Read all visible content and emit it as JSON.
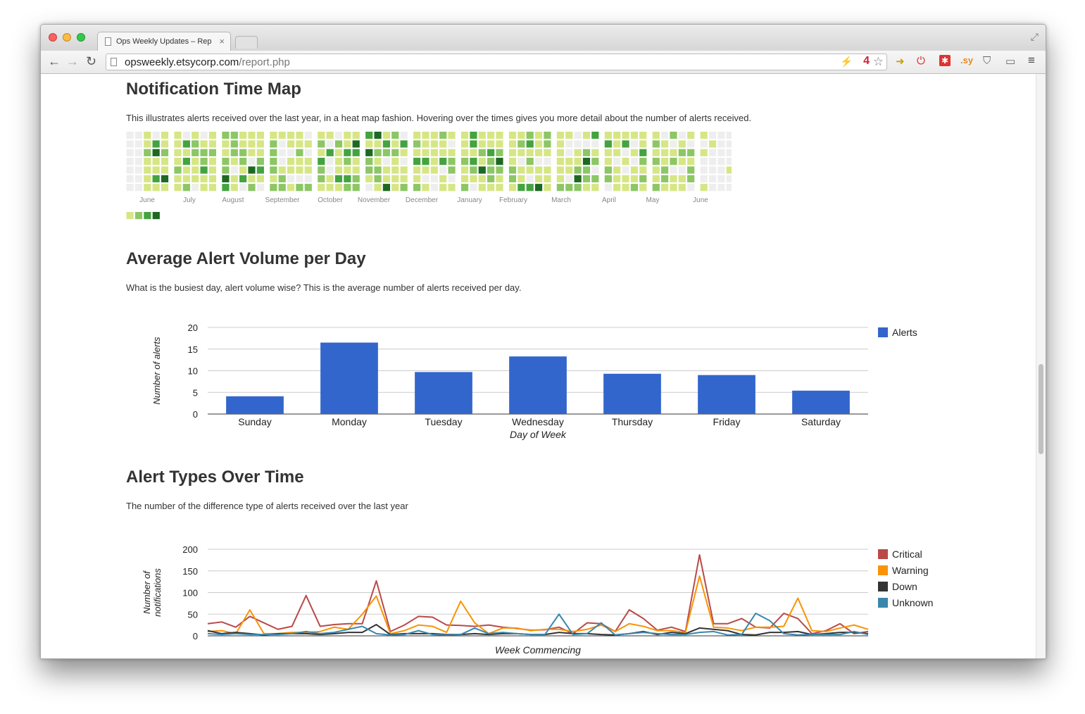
{
  "browser": {
    "tab_title": "Ops Weekly Updates – Rep",
    "tab_close": "×",
    "url_host": "opsweekly.etsycorp.com",
    "url_path": "/report.php",
    "ext_badge": "4",
    "ext_sy": ".sy"
  },
  "sections": {
    "heatmap": {
      "title": "Notification Time Map",
      "description": "This illustrates alerts received over the last year, in a heat map fashion. Hovering over the times gives you more detail about the number of alerts received.",
      "months": [
        "June",
        "July",
        "August",
        "September",
        "October",
        "November",
        "December",
        "January",
        "February",
        "March",
        "April",
        "May",
        "June"
      ],
      "colors": [
        "#eeeeee",
        "#d6e685",
        "#8cc665",
        "#44a340",
        "#1e6823"
      ]
    },
    "volume": {
      "title": "Average Alert Volume per Day",
      "description": "What is the busiest day, alert volume wise? This is the average number of alerts received per day."
    },
    "types": {
      "title": "Alert Types Over Time",
      "description": "The number of the difference type of alerts received over the last year"
    }
  },
  "charts": [
    {
      "type": "bar",
      "categories": [
        "Sunday",
        "Monday",
        "Tuesday",
        "Wednesday",
        "Thursday",
        "Friday",
        "Saturday"
      ],
      "series": [
        {
          "name": "Alerts",
          "color": "#3366cc",
          "values": [
            4.1,
            16.5,
            9.7,
            13.3,
            9.3,
            9.0,
            5.4
          ]
        }
      ],
      "xlabel": "Day of Week",
      "ylabel": "Number of alerts",
      "ylim": [
        0,
        20
      ],
      "yticks": [
        0,
        5,
        10,
        15,
        20
      ],
      "legend": "right",
      "grid": true
    },
    {
      "type": "line",
      "xlabel": "Week Commencing",
      "ylabel": "Number of notifications",
      "ylim": [
        0,
        200
      ],
      "yticks": [
        0,
        50,
        100,
        150,
        200
      ],
      "legend": "right",
      "grid": true,
      "series": [
        {
          "name": "Critical",
          "color": "#b94a48",
          "values": [
            28,
            32,
            20,
            45,
            30,
            15,
            22,
            93,
            22,
            26,
            28,
            28,
            127,
            10,
            25,
            45,
            43,
            25,
            24,
            22,
            25,
            20,
            17,
            13,
            14,
            20,
            5,
            30,
            28,
            10,
            60,
            40,
            13,
            20,
            10,
            187,
            28,
            28,
            40,
            20,
            18,
            52,
            40,
            5,
            12,
            28,
            5,
            10
          ]
        },
        {
          "name": "Warning",
          "color": "#f89406",
          "values": [
            10,
            12,
            5,
            60,
            5,
            5,
            8,
            8,
            10,
            20,
            15,
            50,
            92,
            5,
            12,
            25,
            22,
            8,
            80,
            30,
            5,
            18,
            18,
            12,
            15,
            15,
            10,
            15,
            25,
            10,
            28,
            22,
            12,
            12,
            8,
            138,
            20,
            18,
            12,
            20,
            20,
            22,
            87,
            12,
            10,
            18,
            25,
            15
          ]
        },
        {
          "name": "Down",
          "color": "#333333",
          "values": [
            12,
            5,
            8,
            5,
            2,
            5,
            5,
            5,
            3,
            5,
            8,
            8,
            26,
            3,
            5,
            5,
            5,
            3,
            3,
            5,
            3,
            5,
            5,
            3,
            3,
            8,
            5,
            5,
            3,
            2,
            5,
            10,
            3,
            8,
            5,
            18,
            15,
            12,
            3,
            2,
            8,
            8,
            10,
            3,
            5,
            8,
            8,
            5
          ]
        },
        {
          "name": "Unknown",
          "color": "#3a87ad",
          "values": [
            5,
            3,
            5,
            3,
            3,
            3,
            5,
            10,
            5,
            8,
            15,
            22,
            5,
            2,
            3,
            12,
            3,
            2,
            3,
            18,
            5,
            8,
            5,
            3,
            3,
            50,
            3,
            5,
            30,
            2,
            5,
            8,
            5,
            3,
            3,
            8,
            10,
            2,
            3,
            52,
            35,
            5,
            2,
            3,
            3,
            3,
            10,
            3
          ]
        }
      ]
    }
  ]
}
